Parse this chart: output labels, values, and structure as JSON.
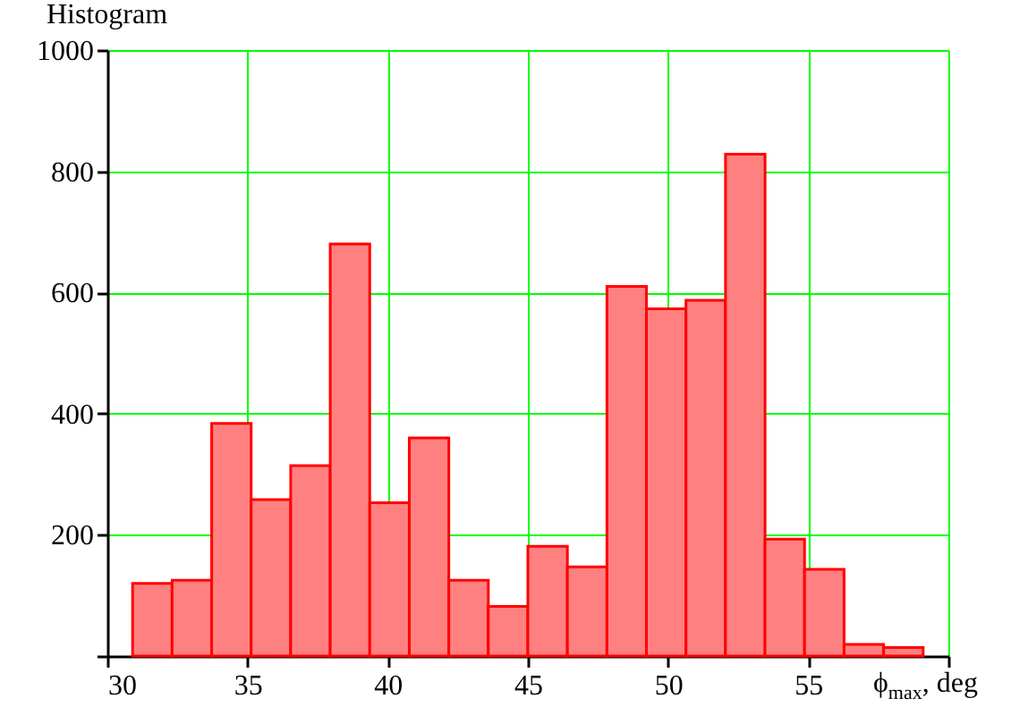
{
  "chart_data": {
    "type": "histogram",
    "title": "Histogram",
    "xlabel": "ϕ$_{max}$, deg",
    "bins": [
      30.9,
      32.31,
      33.72,
      35.13,
      36.54,
      37.95,
      39.36,
      40.77,
      42.18,
      43.59,
      45.0,
      46.41,
      47.82,
      49.23,
      50.64,
      52.05,
      53.46,
      54.87,
      56.28,
      57.69,
      59.1
    ],
    "values": [
      120,
      125,
      384,
      258,
      314,
      680,
      253,
      360,
      125,
      82,
      181,
      147,
      610,
      573,
      587,
      828,
      193,
      143,
      19,
      14
    ],
    "color": "#ff8080",
    "xlim": [
      30,
      60
    ],
    "xticks": [
      30,
      35,
      40,
      45,
      50,
      55,
      {
        "value": 60,
        "label": null
      }
    ],
    "ylim": [
      0,
      1000
    ],
    "yticks": [
      {
        "value": 0,
        "label": null
      },
      200,
      400,
      600,
      800,
      1000
    ],
    "grid": true
  }
}
